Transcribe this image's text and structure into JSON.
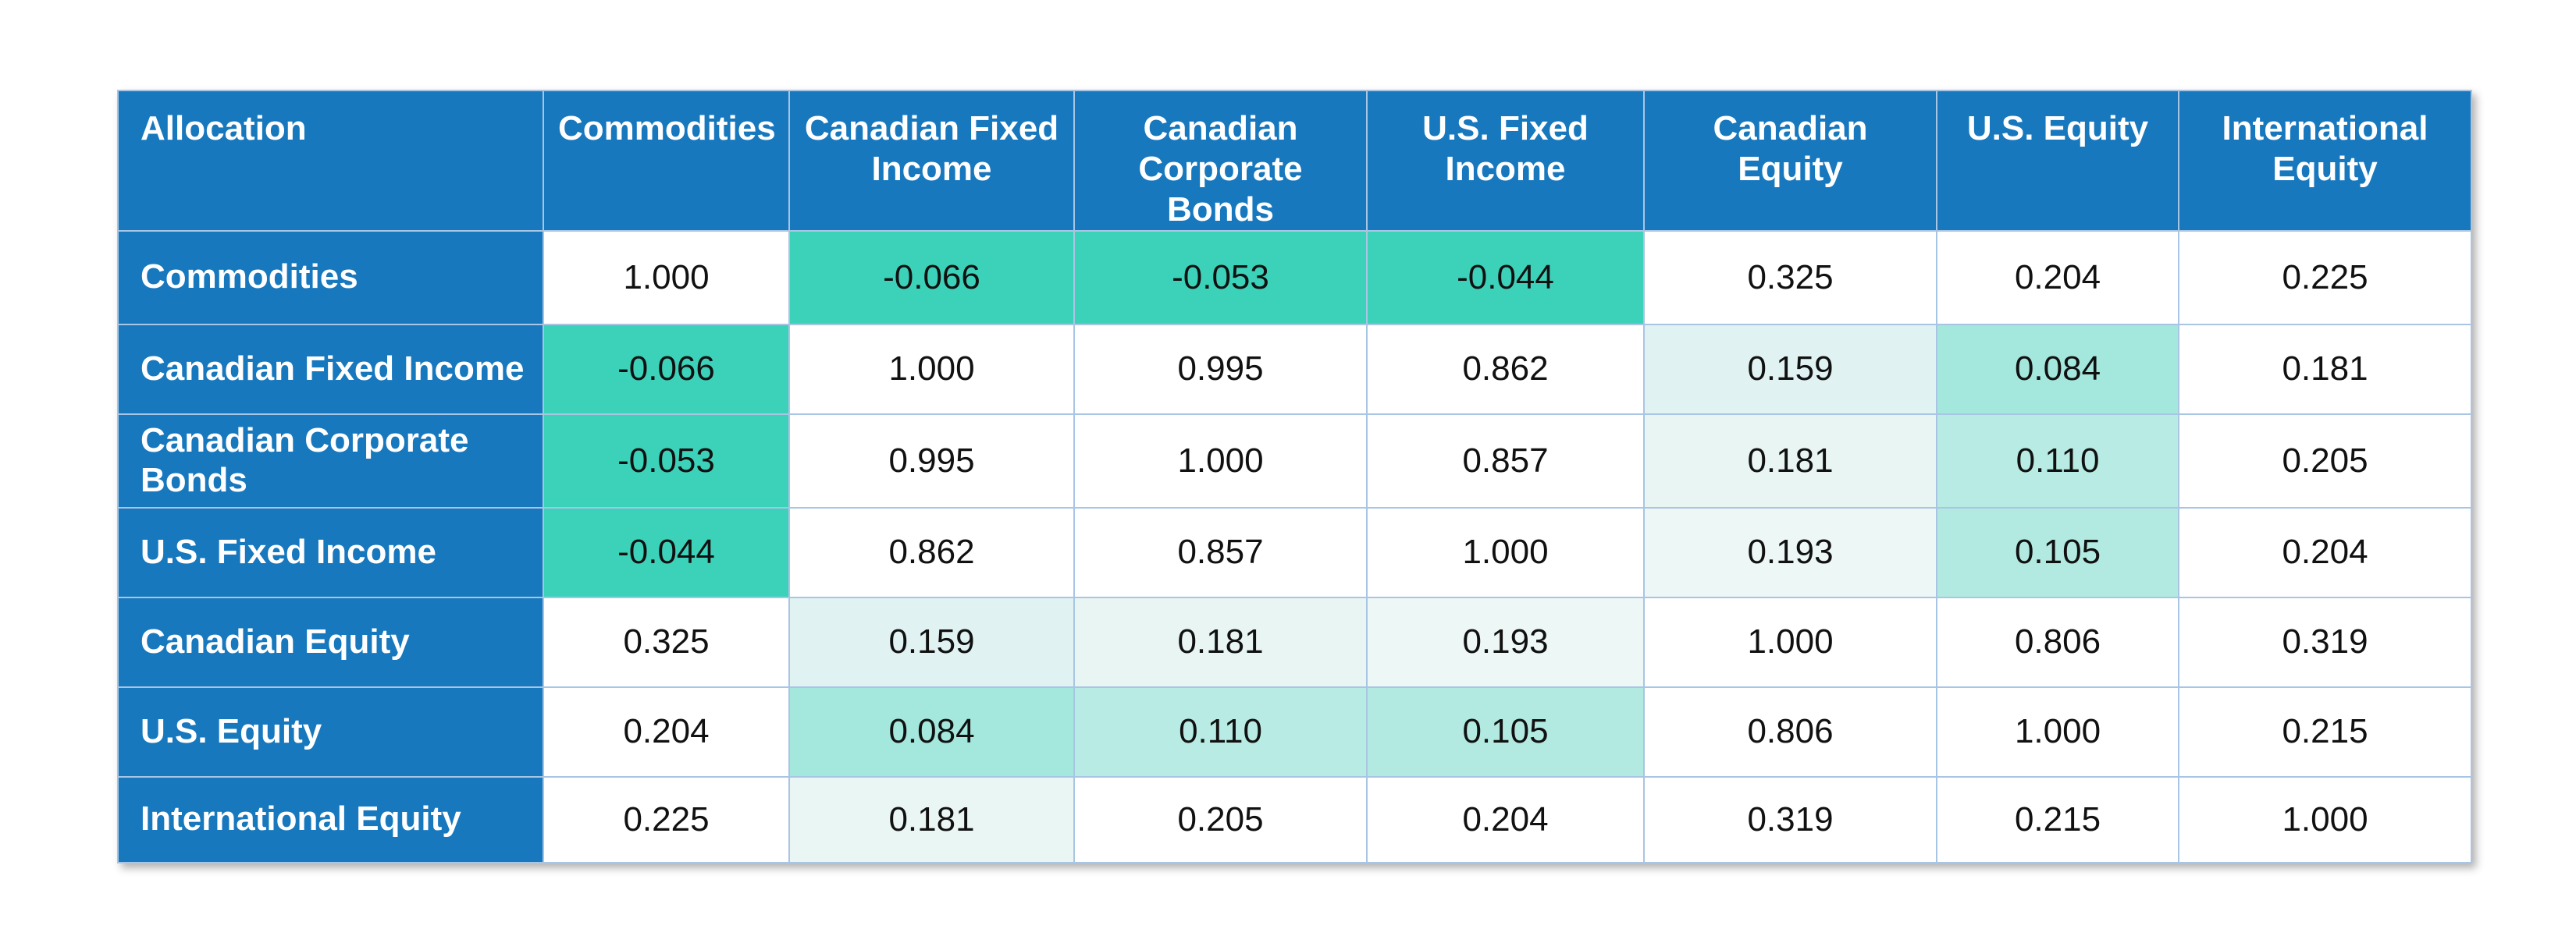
{
  "chart_data": {
    "type": "heatmap",
    "corner_label": "Allocation",
    "columns": [
      "Commodities",
      "Canadian Fixed Income",
      "Canadian Corporate Bonds",
      "U.S. Fixed Income",
      "Canadian Equity",
      "U.S. Equity",
      "International Equity"
    ],
    "rows": [
      "Commodities",
      "Canadian Fixed Income",
      "Canadian Corporate Bonds",
      "U.S. Fixed Income",
      "Canadian Equity",
      "U.S. Equity",
      "International Equity"
    ],
    "matrix": [
      [
        "1.000",
        "-0.066",
        "-0.053",
        "-0.044",
        "0.325",
        "0.204",
        "0.225"
      ],
      [
        "-0.066",
        "1.000",
        "0.995",
        "0.862",
        "0.159",
        "0.084",
        "0.181"
      ],
      [
        "-0.053",
        "0.995",
        "1.000",
        "0.857",
        "0.181",
        "0.110",
        "0.205"
      ],
      [
        "-0.044",
        "0.862",
        "0.857",
        "1.000",
        "0.193",
        "0.105",
        "0.204"
      ],
      [
        "0.325",
        "0.159",
        "0.181",
        "0.193",
        "1.000",
        "0.806",
        "0.319"
      ],
      [
        "0.204",
        "0.084",
        "0.110",
        "0.105",
        "0.806",
        "1.000",
        "0.215"
      ],
      [
        "0.225",
        "0.181",
        "0.205",
        "0.204",
        "0.319",
        "0.215",
        "1.000"
      ]
    ],
    "cell_bg": [
      [
        "#FFFFFF",
        "#3CD2BA",
        "#3CD2BA",
        "#3CD2BA",
        "#FFFFFF",
        "#FFFFFF",
        "#FFFFFF"
      ],
      [
        "#3CD2BA",
        "#FFFFFF",
        "#FFFFFF",
        "#FFFFFF",
        "#E0F3F2",
        "#A4E7DC",
        "#FFFFFF"
      ],
      [
        "#3CD2BA",
        "#FFFFFF",
        "#FFFFFF",
        "#FFFFFF",
        "#E8F5F3",
        "#B7EBE3",
        "#FFFFFF"
      ],
      [
        "#3CD2BA",
        "#FFFFFF",
        "#FFFFFF",
        "#FFFFFF",
        "#EDF7F6",
        "#B2EAE1",
        "#FFFFFF"
      ],
      [
        "#FFFFFF",
        "#E0F3F2",
        "#E8F5F3",
        "#EDF7F6",
        "#FFFFFF",
        "#FFFFFF",
        "#FFFFFF"
      ],
      [
        "#FFFFFF",
        "#A4E7DC",
        "#B7EBE3",
        "#B2EAE1",
        "#FFFFFF",
        "#FFFFFF",
        "#FFFFFF"
      ],
      [
        "#FFFFFF",
        "#EAF6F3",
        "#FFFFFF",
        "#FFFFFF",
        "#FFFFFF",
        "#FFFFFF",
        "#FFFFFF"
      ]
    ],
    "legend_position": "none",
    "grid": true
  },
  "colors": {
    "header_bg": "#1778BE",
    "header_text": "#FFFFFF",
    "grid_border": "#A9C5E4",
    "value_text": "#111111",
    "negative_highlight": "#3CD2BA",
    "low_highlight": "#A4E7DC",
    "faint_highlight": "#E8F5F3",
    "page_bg": "#FFFFFF"
  }
}
